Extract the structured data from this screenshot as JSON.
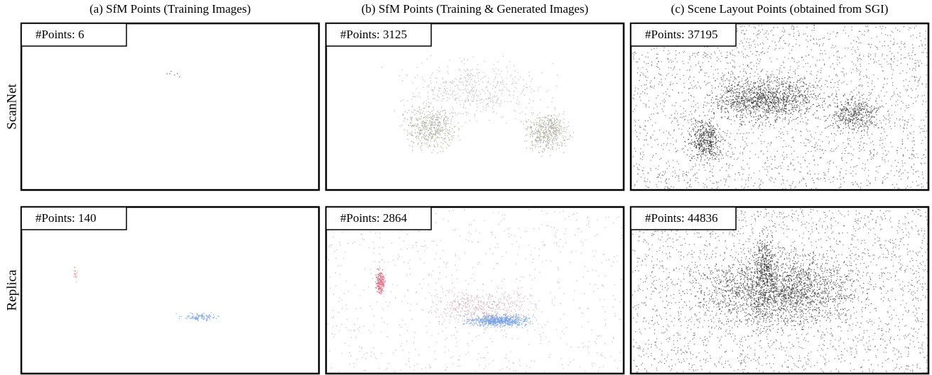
{
  "columns": [
    "(a) SfM Points (Training Images)",
    "(b) SfM Points (Training & Generated Images)",
    "(c) Scene Layout Points (obtained from SGI)"
  ],
  "rows": [
    {
      "name": "ScanNet",
      "panels": [
        "#Points: 6",
        "#Points: 3125",
        "#Points: 37195"
      ]
    },
    {
      "name": "Replica",
      "panels": [
        "#Points: 140",
        "#Points: 2864",
        "#Points: 44836"
      ]
    }
  ]
}
